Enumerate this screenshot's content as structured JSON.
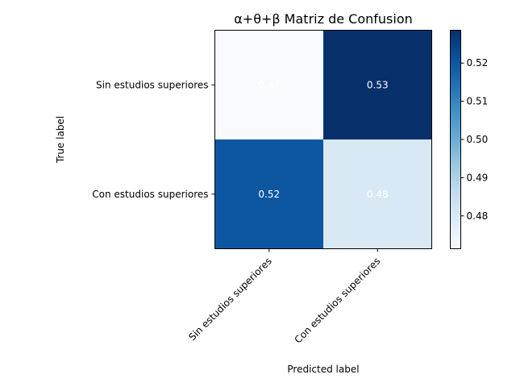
{
  "chart_data": {
    "type": "heatmap",
    "title": "α+θ+β Matriz de Confusion",
    "xlabel": "Predicted label",
    "ylabel": "True label",
    "x_categories": [
      "Sin estudios superiores",
      "Con estudios superiores"
    ],
    "y_categories": [
      "Sin estudios superiores",
      "Con estudios superiores"
    ],
    "values": [
      [
        0.47,
        0.53
      ],
      [
        0.52,
        0.48
      ]
    ],
    "cell_labels": [
      [
        "0.47",
        "0.53"
      ],
      [
        "0.52",
        "0.48"
      ]
    ],
    "colorbar": {
      "colormap": "Blues",
      "range": [
        0.4714,
        0.5286
      ],
      "ticks": [
        0.48,
        0.49,
        0.5,
        0.51,
        0.52
      ],
      "tick_labels": [
        "0.48",
        "0.49",
        "0.50",
        "0.51",
        "0.52"
      ]
    },
    "colors": {
      "low": "#f7fbff",
      "mid": "#9ecae1",
      "high": "#08306b",
      "cell_text": "#ffffff"
    }
  }
}
